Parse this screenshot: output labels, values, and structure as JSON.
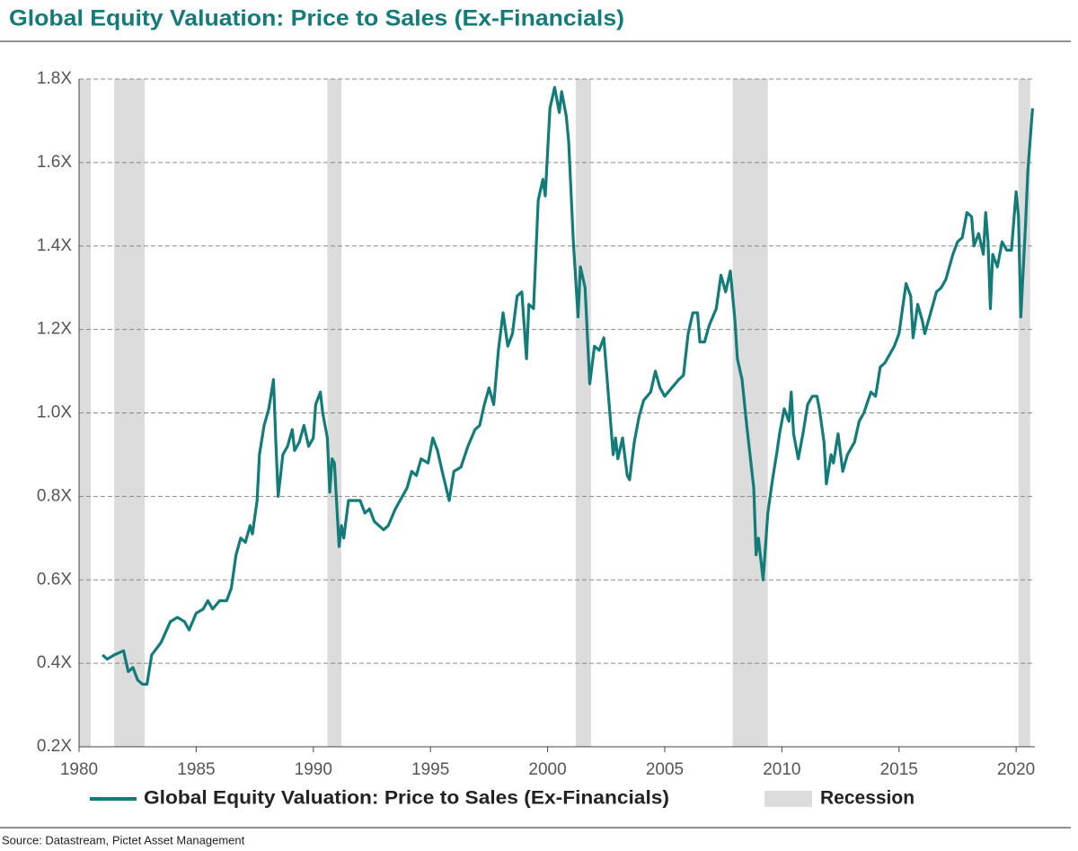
{
  "chart_data": {
    "type": "line",
    "title": "Global Equity Valuation: Price to Sales (Ex-Financials)",
    "source": "Source: Datastream, Pictet Asset Management",
    "xlim": [
      1980,
      2020.8
    ],
    "xticks": [
      1980,
      1985,
      1990,
      1995,
      2000,
      2005,
      2010,
      2015,
      2020
    ],
    "ylim": [
      0.2,
      1.8
    ],
    "yticks": [
      {
        "value": 0.2,
        "label": "0.2X"
      },
      {
        "value": 0.4,
        "label": "0.4X"
      },
      {
        "value": 0.6,
        "label": "0.6X"
      },
      {
        "value": 0.8,
        "label": "0.8X"
      },
      {
        "value": 1.0,
        "label": "1.0X"
      },
      {
        "value": 1.2,
        "label": "1.2X"
      },
      {
        "value": 1.4,
        "label": "1.4X"
      },
      {
        "value": 1.6,
        "label": "1.6X"
      },
      {
        "value": 1.8,
        "label": "1.8X"
      }
    ],
    "grid": true,
    "bands": {
      "name": "Recession",
      "color": "#dcdcdc",
      "ranges": [
        [
          1980.0,
          1980.5
        ],
        [
          1981.5,
          1982.8
        ],
        [
          1990.6,
          1991.2
        ],
        [
          2001.2,
          2001.85
        ],
        [
          2007.9,
          2009.4
        ],
        [
          2020.1,
          2020.6
        ]
      ]
    },
    "series": [
      {
        "name": "Global Equity Valuation: Price to Sales (Ex-Financials)",
        "color": "#137b78",
        "x": [
          1981.0,
          1981.2,
          1981.5,
          1981.9,
          1982.1,
          1982.3,
          1982.5,
          1982.7,
          1982.9,
          1983.1,
          1983.5,
          1983.9,
          1984.2,
          1984.5,
          1984.7,
          1985.0,
          1985.3,
          1985.5,
          1985.7,
          1986.0,
          1986.3,
          1986.5,
          1986.7,
          1986.9,
          1987.1,
          1987.3,
          1987.4,
          1987.6,
          1987.7,
          1987.9,
          1988.1,
          1988.3,
          1988.4,
          1988.5,
          1988.7,
          1988.9,
          1989.1,
          1989.2,
          1989.4,
          1989.6,
          1989.8,
          1990.0,
          1990.1,
          1990.3,
          1990.4,
          1990.6,
          1990.7,
          1990.8,
          1990.9,
          1991.1,
          1991.2,
          1991.3,
          1991.5,
          1991.7,
          1992.0,
          1992.2,
          1992.4,
          1992.6,
          1993.0,
          1993.2,
          1993.5,
          1993.8,
          1994.0,
          1994.2,
          1994.4,
          1994.6,
          1994.9,
          1995.1,
          1995.3,
          1995.5,
          1995.8,
          1996.0,
          1996.3,
          1996.6,
          1996.9,
          1997.1,
          1997.3,
          1997.5,
          1997.7,
          1997.9,
          1998.1,
          1998.3,
          1998.5,
          1998.7,
          1998.9,
          1999.1,
          1999.2,
          1999.4,
          1999.6,
          1999.8,
          1999.9,
          2000.1,
          2000.3,
          2000.5,
          2000.6,
          2000.8,
          2000.9,
          2001.1,
          2001.3,
          2001.4,
          2001.6,
          2001.8,
          2002.0,
          2002.2,
          2002.4,
          2002.6,
          2002.8,
          2002.9,
          2003.0,
          2003.2,
          2003.4,
          2003.5,
          2003.7,
          2003.9,
          2004.1,
          2004.4,
          2004.6,
          2004.8,
          2005.0,
          2005.3,
          2005.6,
          2005.8,
          2006.0,
          2006.2,
          2006.4,
          2006.5,
          2006.7,
          2006.9,
          2007.2,
          2007.4,
          2007.6,
          2007.8,
          2008.0,
          2008.1,
          2008.3,
          2008.5,
          2008.8,
          2008.9,
          2009.0,
          2009.2,
          2009.4,
          2009.6,
          2009.8,
          2009.9,
          2010.1,
          2010.3,
          2010.4,
          2010.5,
          2010.7,
          2010.9,
          2011.1,
          2011.3,
          2011.5,
          2011.6,
          2011.8,
          2011.9,
          2012.1,
          2012.2,
          2012.4,
          2012.6,
          2012.8,
          2013.1,
          2013.3,
          2013.5,
          2013.8,
          2014.0,
          2014.2,
          2014.4,
          2014.6,
          2014.8,
          2015.0,
          2015.2,
          2015.3,
          2015.5,
          2015.6,
          2015.8,
          2016.0,
          2016.1,
          2016.4,
          2016.6,
          2016.8,
          2017.0,
          2017.3,
          2017.5,
          2017.7,
          2017.9,
          2018.1,
          2018.2,
          2018.4,
          2018.6,
          2018.7,
          2018.8,
          2018.9,
          2019.0,
          2019.2,
          2019.4,
          2019.6,
          2019.8,
          2019.9,
          2020.0,
          2020.1,
          2020.2,
          2020.4,
          2020.5,
          2020.7
        ],
        "values": [
          0.42,
          0.41,
          0.42,
          0.43,
          0.38,
          0.39,
          0.36,
          0.35,
          0.35,
          0.42,
          0.45,
          0.5,
          0.51,
          0.5,
          0.48,
          0.52,
          0.53,
          0.55,
          0.53,
          0.55,
          0.55,
          0.58,
          0.66,
          0.7,
          0.69,
          0.73,
          0.71,
          0.79,
          0.9,
          0.97,
          1.01,
          1.08,
          0.93,
          0.8,
          0.9,
          0.92,
          0.96,
          0.91,
          0.93,
          0.97,
          0.92,
          0.94,
          1.02,
          1.05,
          1.0,
          0.94,
          0.81,
          0.89,
          0.88,
          0.68,
          0.73,
          0.7,
          0.79,
          0.79,
          0.79,
          0.76,
          0.77,
          0.74,
          0.72,
          0.73,
          0.77,
          0.8,
          0.82,
          0.86,
          0.85,
          0.89,
          0.88,
          0.94,
          0.91,
          0.86,
          0.79,
          0.86,
          0.87,
          0.92,
          0.96,
          0.97,
          1.02,
          1.06,
          1.02,
          1.15,
          1.24,
          1.16,
          1.19,
          1.28,
          1.29,
          1.13,
          1.26,
          1.25,
          1.51,
          1.56,
          1.52,
          1.73,
          1.78,
          1.72,
          1.77,
          1.71,
          1.65,
          1.41,
          1.23,
          1.35,
          1.3,
          1.07,
          1.16,
          1.15,
          1.18,
          1.04,
          0.9,
          0.94,
          0.89,
          0.94,
          0.85,
          0.84,
          0.93,
          0.99,
          1.03,
          1.05,
          1.1,
          1.06,
          1.04,
          1.06,
          1.08,
          1.09,
          1.19,
          1.24,
          1.24,
          1.17,
          1.17,
          1.21,
          1.25,
          1.33,
          1.29,
          1.34,
          1.22,
          1.13,
          1.08,
          0.97,
          0.82,
          0.66,
          0.7,
          0.6,
          0.76,
          0.84,
          0.91,
          0.95,
          1.01,
          0.98,
          1.05,
          0.95,
          0.89,
          0.95,
          1.02,
          1.04,
          1.04,
          1.01,
          0.93,
          0.83,
          0.9,
          0.88,
          0.95,
          0.86,
          0.9,
          0.93,
          0.98,
          1.0,
          1.05,
          1.04,
          1.11,
          1.12,
          1.14,
          1.16,
          1.19,
          1.27,
          1.31,
          1.28,
          1.18,
          1.26,
          1.22,
          1.19,
          1.25,
          1.29,
          1.3,
          1.32,
          1.38,
          1.41,
          1.42,
          1.48,
          1.47,
          1.4,
          1.43,
          1.38,
          1.48,
          1.41,
          1.25,
          1.38,
          1.35,
          1.41,
          1.39,
          1.39,
          1.46,
          1.53,
          1.47,
          1.23,
          1.45,
          1.58,
          1.73
        ]
      }
    ]
  }
}
